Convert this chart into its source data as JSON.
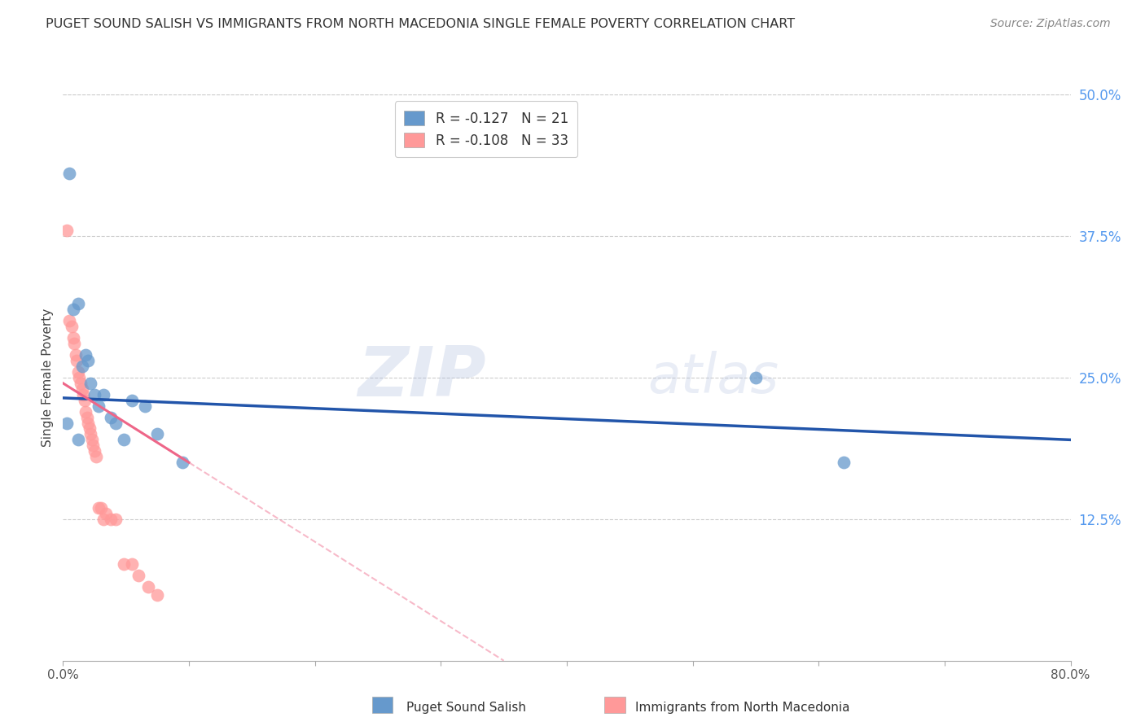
{
  "title": "PUGET SOUND SALISH VS IMMIGRANTS FROM NORTH MACEDONIA SINGLE FEMALE POVERTY CORRELATION CHART",
  "source": "Source: ZipAtlas.com",
  "ylabel": "Single Female Poverty",
  "legend_label1": "Puget Sound Salish",
  "legend_label2": "Immigrants from North Macedonia",
  "R1": -0.127,
  "N1": 21,
  "R2": -0.108,
  "N2": 33,
  "xlim": [
    0.0,
    0.8
  ],
  "ylim": [
    0.0,
    0.5
  ],
  "yticks_right": [
    0.0,
    0.125,
    0.25,
    0.375,
    0.5
  ],
  "ytick_right_labels": [
    "",
    "12.5%",
    "25.0%",
    "37.5%",
    "50.0%"
  ],
  "hgrid_vals": [
    0.125,
    0.25,
    0.375,
    0.5
  ],
  "color_blue": "#6699CC",
  "color_pink": "#FF9999",
  "color_trendline_blue": "#2255AA",
  "color_trendline_pink": "#EE6688",
  "watermark_zip": "ZIP",
  "watermark_atlas": "atlas",
  "blue_x": [
    0.005,
    0.008,
    0.012,
    0.015,
    0.018,
    0.02,
    0.022,
    0.025,
    0.028,
    0.032,
    0.038,
    0.042,
    0.048,
    0.055,
    0.065,
    0.075,
    0.095,
    0.55,
    0.62,
    0.003,
    0.012
  ],
  "blue_y": [
    0.43,
    0.31,
    0.315,
    0.26,
    0.27,
    0.265,
    0.245,
    0.235,
    0.225,
    0.235,
    0.215,
    0.21,
    0.195,
    0.23,
    0.225,
    0.2,
    0.175,
    0.25,
    0.175,
    0.21,
    0.195
  ],
  "pink_x": [
    0.003,
    0.005,
    0.007,
    0.008,
    0.009,
    0.01,
    0.011,
    0.012,
    0.013,
    0.014,
    0.015,
    0.016,
    0.017,
    0.018,
    0.019,
    0.02,
    0.021,
    0.022,
    0.023,
    0.024,
    0.025,
    0.026,
    0.028,
    0.03,
    0.032,
    0.034,
    0.038,
    0.042,
    0.048,
    0.055,
    0.06,
    0.068,
    0.075
  ],
  "pink_y": [
    0.38,
    0.3,
    0.295,
    0.285,
    0.28,
    0.27,
    0.265,
    0.255,
    0.25,
    0.245,
    0.24,
    0.235,
    0.23,
    0.22,
    0.215,
    0.21,
    0.205,
    0.2,
    0.195,
    0.19,
    0.185,
    0.18,
    0.135,
    0.135,
    0.125,
    0.13,
    0.125,
    0.125,
    0.085,
    0.085,
    0.075,
    0.065,
    0.058
  ],
  "blue_trend_x0": 0.0,
  "blue_trend_y0": 0.232,
  "blue_trend_x1": 0.8,
  "blue_trend_y1": 0.195,
  "pink_trend_solid_x0": 0.0,
  "pink_trend_solid_y0": 0.245,
  "pink_trend_solid_x1": 0.1,
  "pink_trend_solid_y1": 0.175,
  "pink_trend_dash_x0": 0.1,
  "pink_trend_dash_y0": 0.175,
  "pink_trend_dash_x1": 0.35,
  "pink_trend_dash_y1": 0.0
}
